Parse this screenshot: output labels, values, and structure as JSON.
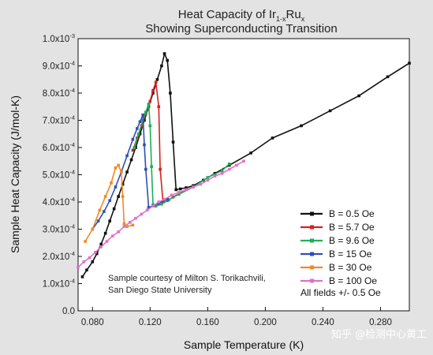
{
  "chart_data": {
    "type": "line",
    "title_line1": "Heat Capacity of Ir",
    "title_sub1": "1-x",
    "title_mid": "Ru",
    "title_sub2": "x",
    "title_line2": "Showing Superconducting Transition",
    "xlabel": "Sample Temperature (K)",
    "ylabel": "Sample Heat Capacity (J/mol-K)",
    "xlim": [
      0.07,
      0.3
    ],
    "ylim": [
      0,
      0.001
    ],
    "x_ticks": [
      {
        "value": 0.08,
        "label": "0.080"
      },
      {
        "value": 0.12,
        "label": "0.120"
      },
      {
        "value": 0.16,
        "label": "0.160"
      },
      {
        "value": 0.2,
        "label": "0.200"
      },
      {
        "value": 0.24,
        "label": "0.240"
      },
      {
        "value": 0.28,
        "label": "0.280"
      }
    ],
    "y_ticks": [
      {
        "value": 0.0,
        "mant": "0.0",
        "exp": ""
      },
      {
        "value": 0.0001,
        "mant": "1.0x10",
        "exp": "-4"
      },
      {
        "value": 0.0002,
        "mant": "2.0x10",
        "exp": "-4"
      },
      {
        "value": 0.0003,
        "mant": "3.0x10",
        "exp": "-4"
      },
      {
        "value": 0.0004,
        "mant": "4.0x10",
        "exp": "-4"
      },
      {
        "value": 0.0005,
        "mant": "5.0x10",
        "exp": "-4"
      },
      {
        "value": 0.0006,
        "mant": "6.0x10",
        "exp": "-4"
      },
      {
        "value": 0.0007,
        "mant": "7.0x10",
        "exp": "-4"
      },
      {
        "value": 0.0008,
        "mant": "8.0x10",
        "exp": "-4"
      },
      {
        "value": 0.0009,
        "mant": "9.0x10",
        "exp": "-4"
      },
      {
        "value": 0.001,
        "mant": "1.0x10",
        "exp": "-3"
      }
    ],
    "legend_position": "bottom-right",
    "legend_note": "All fields +/- 0.5 Oe",
    "annotation": [
      "Sample courtesy of Milton S. Torikachvili,",
      "San Diego State University"
    ],
    "series": [
      {
        "name": "B = 0.5 Oe",
        "color": "#111111",
        "x": [
          0.073,
          0.076,
          0.08,
          0.083,
          0.086,
          0.089,
          0.092,
          0.095,
          0.098,
          0.101,
          0.104,
          0.107,
          0.11,
          0.113,
          0.116,
          0.119,
          0.122,
          0.125,
          0.128,
          0.13,
          0.132,
          0.134,
          0.136,
          0.138,
          0.141,
          0.145,
          0.15,
          0.157,
          0.165,
          0.175,
          0.19,
          0.205,
          0.225,
          0.245,
          0.265,
          0.285,
          0.3
        ],
        "y": [
          0.000125,
          0.00015,
          0.00018,
          0.00021,
          0.000245,
          0.000285,
          0.00033,
          0.000375,
          0.00042,
          0.000465,
          0.00051,
          0.000555,
          0.0006,
          0.00065,
          0.0007,
          0.00075,
          0.0008,
          0.00085,
          0.0009,
          0.000945,
          0.00092,
          0.0008,
          0.00062,
          0.000445,
          0.000448,
          0.000452,
          0.00046,
          0.00048,
          0.000505,
          0.000535,
          0.00058,
          0.000635,
          0.00068,
          0.000735,
          0.00079,
          0.00086,
          0.00091
        ]
      },
      {
        "name": "B = 5.7 Oe",
        "color": "#d82020",
        "x": [
          0.108,
          0.111,
          0.114,
          0.117,
          0.12,
          0.122,
          0.124,
          0.126,
          0.127,
          0.129,
          0.132,
          0.136,
          0.14,
          0.145
        ],
        "y": [
          0.00059,
          0.000635,
          0.00068,
          0.000725,
          0.00077,
          0.00081,
          0.00084,
          0.00075,
          0.00052,
          0.0004,
          0.000405,
          0.000418,
          0.00043,
          0.000445
        ]
      },
      {
        "name": "B = 9.6 Oe",
        "color": "#1fae5a",
        "x": [
          0.109,
          0.112,
          0.115,
          0.117,
          0.119,
          0.12,
          0.121,
          0.122,
          0.124,
          0.128,
          0.133,
          0.14,
          0.15,
          0.16,
          0.17,
          0.175
        ],
        "y": [
          0.0006,
          0.00065,
          0.0007,
          0.00073,
          0.00076,
          0.00068,
          0.00053,
          0.00039,
          0.000385,
          0.000392,
          0.000408,
          0.000428,
          0.000455,
          0.00049,
          0.000515,
          0.00054
        ]
      },
      {
        "name": "B = 15 Oe",
        "color": "#2f50b4",
        "x": [
          0.08,
          0.084,
          0.088,
          0.092,
          0.096,
          0.1,
          0.104,
          0.108,
          0.111,
          0.113,
          0.115,
          0.116,
          0.117,
          0.119,
          0.122,
          0.126,
          0.132
        ],
        "y": [
          0.0003,
          0.00033,
          0.000365,
          0.000405,
          0.000455,
          0.00051,
          0.00057,
          0.00063,
          0.00067,
          0.000695,
          0.00072,
          0.00061,
          0.00052,
          0.00038,
          0.000385,
          0.000395,
          0.00041
        ]
      },
      {
        "name": "B = 30 Oe",
        "color": "#f08a24",
        "x": [
          0.075,
          0.08,
          0.085,
          0.089,
          0.093,
          0.096,
          0.098,
          0.1,
          0.101,
          0.102,
          0.104,
          0.108
        ],
        "y": [
          0.000255,
          0.0003,
          0.00037,
          0.00042,
          0.00047,
          0.000525,
          0.000535,
          0.00051,
          0.00042,
          0.00032,
          0.00031,
          0.000315
        ]
      },
      {
        "name": "B = 100 Oe",
        "color": "#e070c8",
        "x": [
          0.07,
          0.074,
          0.078,
          0.082,
          0.086,
          0.09,
          0.094,
          0.098,
          0.102,
          0.106,
          0.11,
          0.114,
          0.118,
          0.122,
          0.126,
          0.13,
          0.135,
          0.14,
          0.145,
          0.15,
          0.155,
          0.16,
          0.165,
          0.17,
          0.175,
          0.18,
          0.185
        ],
        "y": [
          0.00016,
          0.00018,
          0.000195,
          0.000215,
          0.000235,
          0.000255,
          0.000275,
          0.00029,
          0.00031,
          0.000325,
          0.00034,
          0.000355,
          0.00037,
          0.000385,
          0.0004,
          0.00041,
          0.000425,
          0.000435,
          0.000445,
          0.000455,
          0.000465,
          0.00048,
          0.000495,
          0.000505,
          0.00052,
          0.000535,
          0.00055
        ]
      }
    ]
  },
  "watermark": "知乎 @检测中心黄工"
}
